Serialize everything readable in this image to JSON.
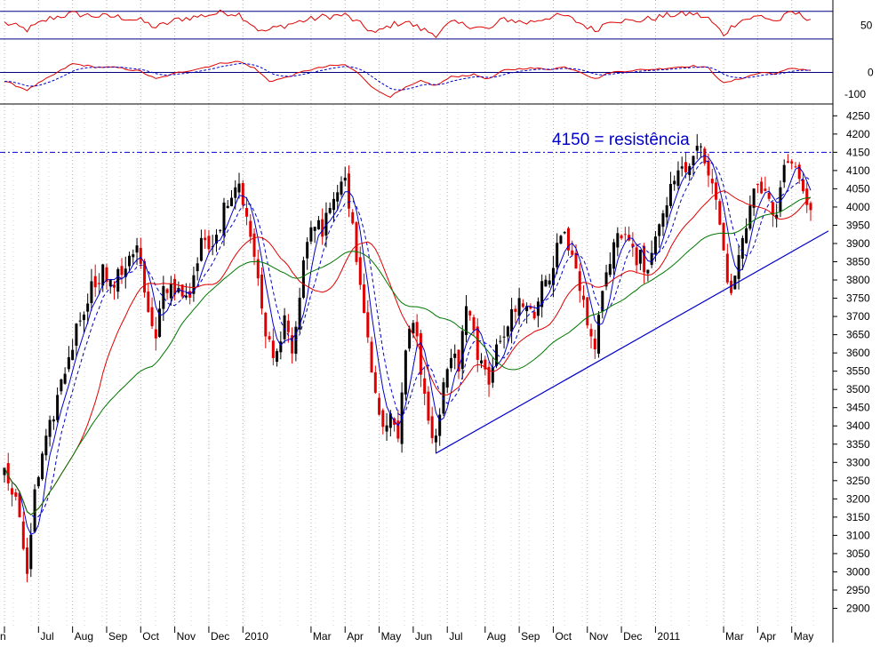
{
  "colors": {
    "background": "#ffffff",
    "grid": "#b0b0b0",
    "bull_candle": "#000000",
    "bear_candle": "#e00000",
    "ma_fast": "#0000cc",
    "ma_fast_dash": "#0000cc",
    "ma_mid": "#e00000",
    "ma_slow": "#007700",
    "trendline": "#0000cc",
    "resistance": "#0000cc",
    "rsi": "#e00000",
    "macd": "#e00000",
    "macd_signal": "#0000cc",
    "panel_border": "#000080",
    "annotation": "#0000cc"
  },
  "chart_data": {
    "type": "candlestick",
    "title": "",
    "xlabel": "",
    "ylabel": "",
    "x_labels": [
      "n",
      "Jul",
      "Aug",
      "Sep",
      "Oct",
      "Nov",
      "Dec",
      "2010",
      "Mar",
      "Apr",
      "May",
      "Jun",
      "Jul",
      "Aug",
      "Sep",
      "Oct",
      "Nov",
      "Dec",
      "2011",
      "Mar",
      "Apr",
      "May"
    ],
    "x_label_positions_index": [
      0,
      9,
      18,
      27,
      36,
      45,
      54,
      63,
      81,
      90,
      99,
      108,
      117,
      127,
      136,
      145,
      154,
      163,
      172,
      190,
      199,
      208
    ],
    "price_axis": {
      "ylim": [
        2850,
        4280
      ],
      "ticks": [
        4250,
        4200,
        4150,
        4100,
        4050,
        4000,
        3950,
        3900,
        3850,
        3800,
        3750,
        3700,
        3650,
        3600,
        3550,
        3500,
        3450,
        3400,
        3350,
        3300,
        3250,
        3200,
        3150,
        3100,
        3050,
        3000,
        2950,
        2900
      ]
    },
    "rsi_panel": {
      "ylim": [
        10,
        95
      ],
      "ticks": [
        50
      ],
      "upper_band": 80,
      "lower_band": 20
    },
    "macd_panel": {
      "ylim": [
        -140,
        120
      ],
      "ticks": [
        0,
        -100
      ]
    },
    "resistance": {
      "value": 4150,
      "label": "4150 = resistência"
    },
    "trendline": {
      "start": {
        "index": 114,
        "value": 3325
      },
      "end": {
        "index": 213,
        "value": 3910
      }
    },
    "close_anchors": [
      [
        0,
        3270
      ],
      [
        3,
        3190
      ],
      [
        6,
        3000
      ],
      [
        8,
        3210
      ],
      [
        11,
        3350
      ],
      [
        14,
        3480
      ],
      [
        17,
        3590
      ],
      [
        20,
        3700
      ],
      [
        23,
        3780
      ],
      [
        26,
        3830
      ],
      [
        28,
        3780
      ],
      [
        31,
        3820
      ],
      [
        33,
        3870
      ],
      [
        35,
        3900
      ],
      [
        38,
        3700
      ],
      [
        40,
        3630
      ],
      [
        42,
        3770
      ],
      [
        45,
        3780
      ],
      [
        48,
        3760
      ],
      [
        50,
        3790
      ],
      [
        52,
        3900
      ],
      [
        55,
        3880
      ],
      [
        57,
        3960
      ],
      [
        60,
        4050
      ],
      [
        62,
        4070
      ],
      [
        64,
        3980
      ],
      [
        66,
        3860
      ],
      [
        68,
        3720
      ],
      [
        70,
        3620
      ],
      [
        72,
        3600
      ],
      [
        74,
        3710
      ],
      [
        76,
        3620
      ],
      [
        78,
        3760
      ],
      [
        80,
        3900
      ],
      [
        82,
        3950
      ],
      [
        84,
        3940
      ],
      [
        86,
        4000
      ],
      [
        88,
        4050
      ],
      [
        90,
        4060
      ],
      [
        92,
        3950
      ],
      [
        94,
        3780
      ],
      [
        96,
        3640
      ],
      [
        98,
        3500
      ],
      [
        100,
        3380
      ],
      [
        102,
        3450
      ],
      [
        104,
        3350
      ],
      [
        106,
        3600
      ],
      [
        108,
        3700
      ],
      [
        110,
        3560
      ],
      [
        112,
        3400
      ],
      [
        114,
        3370
      ],
      [
        116,
        3500
      ],
      [
        118,
        3600
      ],
      [
        120,
        3560
      ],
      [
        122,
        3720
      ],
      [
        124,
        3650
      ],
      [
        126,
        3560
      ],
      [
        128,
        3500
      ],
      [
        130,
        3640
      ],
      [
        132,
        3660
      ],
      [
        134,
        3700
      ],
      [
        136,
        3740
      ],
      [
        138,
        3740
      ],
      [
        140,
        3690
      ],
      [
        142,
        3800
      ],
      [
        144,
        3810
      ],
      [
        146,
        3880
      ],
      [
        148,
        3940
      ],
      [
        150,
        3860
      ],
      [
        152,
        3770
      ],
      [
        154,
        3700
      ],
      [
        156,
        3610
      ],
      [
        158,
        3750
      ],
      [
        160,
        3860
      ],
      [
        162,
        3930
      ],
      [
        164,
        3900
      ],
      [
        166,
        3870
      ],
      [
        168,
        3860
      ],
      [
        170,
        3820
      ],
      [
        172,
        3900
      ],
      [
        174,
        3990
      ],
      [
        176,
        4040
      ],
      [
        178,
        4090
      ],
      [
        180,
        4110
      ],
      [
        182,
        4130
      ],
      [
        184,
        4160
      ],
      [
        186,
        4090
      ],
      [
        188,
        4000
      ],
      [
        190,
        3880
      ],
      [
        192,
        3740
      ],
      [
        194,
        3870
      ],
      [
        196,
        3960
      ],
      [
        198,
        4030
      ],
      [
        200,
        4050
      ],
      [
        202,
        4010
      ],
      [
        204,
        3990
      ],
      [
        206,
        4110
      ],
      [
        208,
        4140
      ],
      [
        210,
        4080
      ],
      [
        212,
        4020
      ],
      [
        213,
        3990
      ]
    ],
    "rsi_anchors": [
      [
        0,
        55
      ],
      [
        6,
        40
      ],
      [
        12,
        65
      ],
      [
        18,
        75
      ],
      [
        24,
        70
      ],
      [
        30,
        68
      ],
      [
        36,
        60
      ],
      [
        40,
        45
      ],
      [
        46,
        63
      ],
      [
        52,
        70
      ],
      [
        58,
        78
      ],
      [
        62,
        74
      ],
      [
        68,
        35
      ],
      [
        72,
        45
      ],
      [
        78,
        58
      ],
      [
        84,
        68
      ],
      [
        90,
        72
      ],
      [
        94,
        52
      ],
      [
        98,
        32
      ],
      [
        102,
        50
      ],
      [
        106,
        58
      ],
      [
        110,
        42
      ],
      [
        114,
        30
      ],
      [
        118,
        55
      ],
      [
        124,
        48
      ],
      [
        128,
        40
      ],
      [
        132,
        64
      ],
      [
        138,
        55
      ],
      [
        144,
        68
      ],
      [
        148,
        70
      ],
      [
        152,
        55
      ],
      [
        156,
        38
      ],
      [
        160,
        62
      ],
      [
        166,
        58
      ],
      [
        172,
        66
      ],
      [
        176,
        72
      ],
      [
        182,
        75
      ],
      [
        186,
        64
      ],
      [
        190,
        30
      ],
      [
        194,
        60
      ],
      [
        200,
        70
      ],
      [
        204,
        58
      ],
      [
        208,
        78
      ],
      [
        213,
        64
      ]
    ],
    "macd_anchors": [
      [
        0,
        -40
      ],
      [
        6,
        -80
      ],
      [
        12,
        -20
      ],
      [
        18,
        40
      ],
      [
        24,
        25
      ],
      [
        30,
        22
      ],
      [
        36,
        5
      ],
      [
        40,
        -30
      ],
      [
        46,
        0
      ],
      [
        52,
        20
      ],
      [
        58,
        45
      ],
      [
        62,
        50
      ],
      [
        66,
        20
      ],
      [
        70,
        -40
      ],
      [
        74,
        -25
      ],
      [
        80,
        10
      ],
      [
        86,
        30
      ],
      [
        90,
        35
      ],
      [
        94,
        -10
      ],
      [
        98,
        -80
      ],
      [
        102,
        -110
      ],
      [
        106,
        -70
      ],
      [
        110,
        -40
      ],
      [
        114,
        -60
      ],
      [
        118,
        -20
      ],
      [
        124,
        -10
      ],
      [
        128,
        -30
      ],
      [
        132,
        10
      ],
      [
        138,
        20
      ],
      [
        144,
        15
      ],
      [
        148,
        25
      ],
      [
        152,
        5
      ],
      [
        156,
        -30
      ],
      [
        160,
        0
      ],
      [
        166,
        10
      ],
      [
        172,
        15
      ],
      [
        178,
        25
      ],
      [
        182,
        30
      ],
      [
        186,
        20
      ],
      [
        190,
        -50
      ],
      [
        194,
        -30
      ],
      [
        200,
        0
      ],
      [
        204,
        -5
      ],
      [
        208,
        20
      ],
      [
        213,
        10
      ]
    ],
    "moving_averages": [
      {
        "name": "fast",
        "period": 5
      },
      {
        "name": "fast-dash",
        "period": 8
      },
      {
        "name": "mid",
        "period": 20
      },
      {
        "name": "slow",
        "period": 40
      }
    ],
    "n_bars": 214
  }
}
